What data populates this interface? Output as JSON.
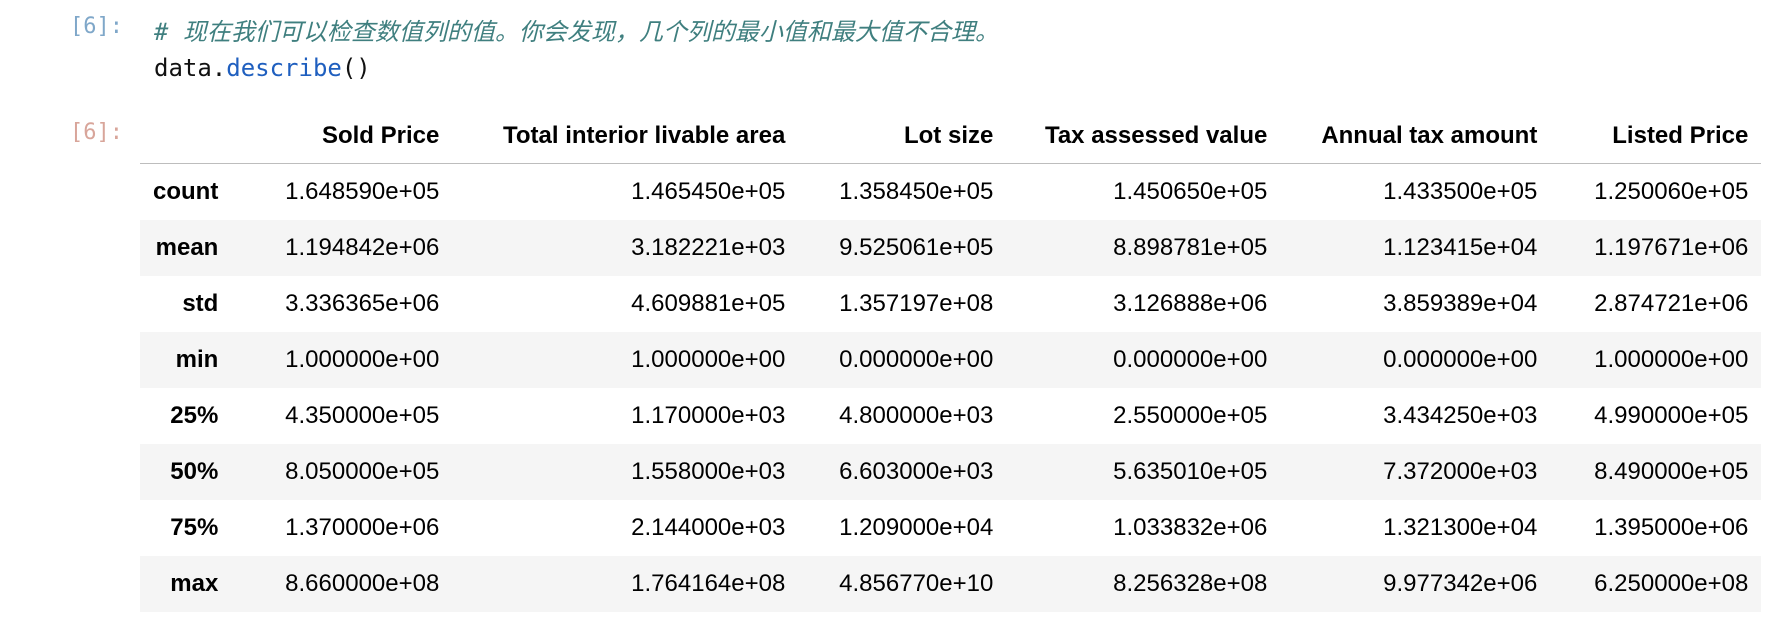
{
  "cell": {
    "input_prompt": "[6]:",
    "output_prompt": "[6]:",
    "code_comment": "#  现在我们可以检查数值列的值。你会发现，几个列的最小值和最大值不合理。",
    "code_obj": "data.",
    "code_func": "describe",
    "code_parens": "()"
  },
  "table": {
    "columns": [
      "Sold Price",
      "Total interior livable area",
      "Lot size",
      "Tax assessed value",
      "Annual tax amount",
      "Listed Price"
    ],
    "rows": [
      {
        "index": "count",
        "values": [
          "1.648590e+05",
          "1.465450e+05",
          "1.358450e+05",
          "1.450650e+05",
          "1.433500e+05",
          "1.250060e+05"
        ]
      },
      {
        "index": "mean",
        "values": [
          "1.194842e+06",
          "3.182221e+03",
          "9.525061e+05",
          "8.898781e+05",
          "1.123415e+04",
          "1.197671e+06"
        ]
      },
      {
        "index": "std",
        "values": [
          "3.336365e+06",
          "4.609881e+05",
          "1.357197e+08",
          "3.126888e+06",
          "3.859389e+04",
          "2.874721e+06"
        ]
      },
      {
        "index": "min",
        "values": [
          "1.000000e+00",
          "1.000000e+00",
          "0.000000e+00",
          "0.000000e+00",
          "0.000000e+00",
          "1.000000e+00"
        ]
      },
      {
        "index": "25%",
        "values": [
          "4.350000e+05",
          "1.170000e+03",
          "4.800000e+03",
          "2.550000e+05",
          "3.434250e+03",
          "4.990000e+05"
        ]
      },
      {
        "index": "50%",
        "values": [
          "8.050000e+05",
          "1.558000e+03",
          "6.603000e+03",
          "5.635010e+05",
          "7.372000e+03",
          "8.490000e+05"
        ]
      },
      {
        "index": "75%",
        "values": [
          "1.370000e+06",
          "2.144000e+03",
          "1.209000e+04",
          "1.033832e+06",
          "1.321300e+04",
          "1.395000e+06"
        ]
      },
      {
        "index": "max",
        "values": [
          "8.660000e+08",
          "1.764164e+08",
          "4.856770e+10",
          "8.256328e+08",
          "9.977342e+06",
          "6.250000e+08"
        ]
      }
    ]
  },
  "colors": {
    "input_prompt": "#7fa7c9",
    "output_prompt": "#d8a59a",
    "comment": "#3f7f7f",
    "function": "#1f5fbf",
    "row_stripe": "#f5f5f5"
  }
}
